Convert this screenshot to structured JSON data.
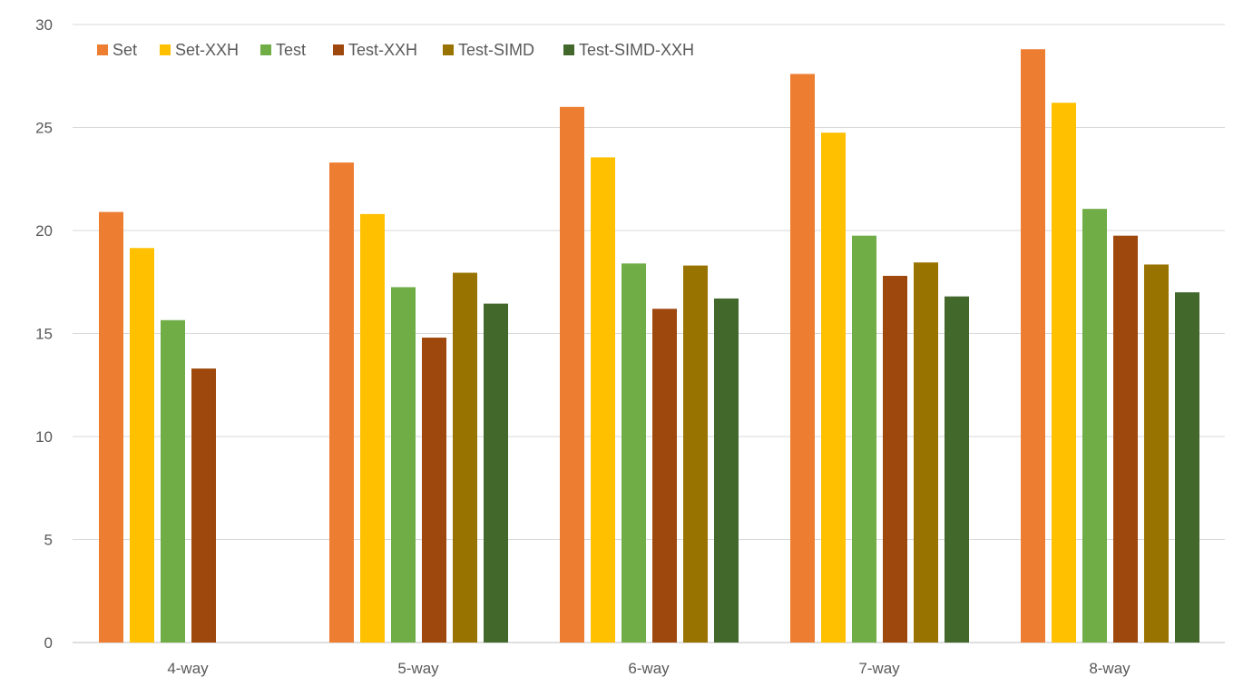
{
  "chart_data": {
    "type": "bar",
    "title": "",
    "xlabel": "",
    "ylabel": "",
    "ylim": [
      0,
      30
    ],
    "yticks": [
      0,
      5,
      10,
      15,
      20,
      25,
      30
    ],
    "grid": true,
    "legend_position": "top-left",
    "categories": [
      "4-way",
      "5-way",
      "6-way",
      "7-way",
      "8-way"
    ],
    "series": [
      {
        "name": "Set",
        "color": "#ED7D31",
        "values": [
          20.9,
          23.3,
          26.0,
          27.6,
          28.8
        ]
      },
      {
        "name": "Set-XXH",
        "color": "#FFC000",
        "values": [
          19.15,
          20.8,
          23.55,
          24.75,
          26.2
        ]
      },
      {
        "name": "Test",
        "color": "#70AD47",
        "values": [
          15.65,
          17.25,
          18.4,
          19.75,
          21.05
        ]
      },
      {
        "name": "Test-XXH",
        "color": "#9E480E",
        "values": [
          13.3,
          14.8,
          16.2,
          17.8,
          19.75
        ]
      },
      {
        "name": "Test-SIMD",
        "color": "#997300",
        "values": [
          null,
          17.95,
          18.3,
          18.45,
          18.35
        ]
      },
      {
        "name": "Test-SIMD-XXH",
        "color": "#43682B",
        "values": [
          null,
          16.45,
          16.7,
          16.8,
          17.0
        ]
      }
    ]
  }
}
